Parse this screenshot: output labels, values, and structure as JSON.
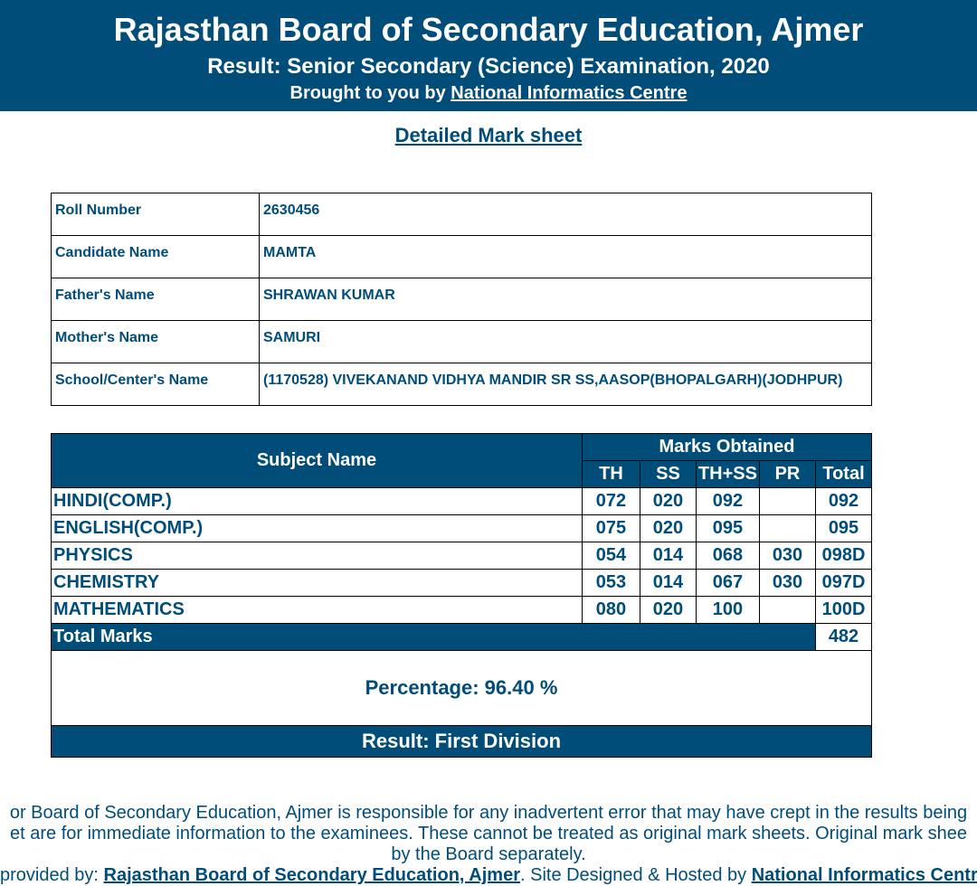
{
  "header": {
    "title": "Rajasthan Board of Secondary Education, Ajmer",
    "subtitle": "Result: Senior Secondary (Science) Examination, 2020",
    "brought_prefix": "Brought to you by ",
    "brought_link": "National Informatics Centre",
    "band_bg": "#004d7a",
    "band_fg": "#ffffff"
  },
  "detailed_heading": "Detailed Mark sheet ",
  "info": {
    "rows": [
      {
        "label": "Roll Number",
        "value": "2630456"
      },
      {
        "label": "Candidate Name",
        "value": "MAMTA"
      },
      {
        "label": "Father's Name",
        "value": "SHRAWAN KUMAR"
      },
      {
        "label": "Mother's Name",
        "value": "SAMURI"
      },
      {
        "label": "School/Center's Name",
        "value": "(1170528) VIVEKANAND VIDHYA MANDIR SR SS,AASOP(BHOPALGARH)(JODHPUR)"
      }
    ]
  },
  "marks": {
    "subject_hdr": "Subject Name",
    "marks_hdr": "Marks Obtained",
    "cols": {
      "th": "TH",
      "ss": "SS",
      "thss": "TH+SS",
      "pr": "PR",
      "total": "Total"
    },
    "rows": [
      {
        "subject": "HINDI(COMP.)",
        "th": "072",
        "ss": "020",
        "thss": "092",
        "pr": "",
        "total": "092"
      },
      {
        "subject": "ENGLISH(COMP.)",
        "th": "075",
        "ss": "020",
        "thss": "095",
        "pr": "",
        "total": "095"
      },
      {
        "subject": "PHYSICS",
        "th": "054",
        "ss": "014",
        "thss": "068",
        "pr": "030",
        "total": "098D"
      },
      {
        "subject": "CHEMISTRY",
        "th": "053",
        "ss": "014",
        "thss": "067",
        "pr": "030",
        "total": "097D"
      },
      {
        "subject": "MATHEMATICS",
        "th": "080",
        "ss": "020",
        "thss": "100",
        "pr": "",
        "total": "100D"
      }
    ],
    "total_label": "Total Marks",
    "total_value": "482",
    "percentage": "Percentage: 96.40 %",
    "result": "Result: First Division"
  },
  "disclaimer": {
    "l1": "or Board of Secondary Education, Ajmer is responsible for any inadvertent error that may have crept in the results being",
    "l2": "et are for immediate information to the examinees. These cannot be treated as original mark sheets. Original mark shee",
    "l3": "by the Board separately."
  },
  "footer": {
    "prefix": " provided by: ",
    "link1": "Rajasthan Board of Secondary Education, Ajmer",
    "mid": ". Site Designed & Hosted by ",
    "link2": "National Informatics Centre"
  },
  "colors": {
    "brand": "#004d7a",
    "text_on_brand": "#ffffff",
    "border": "#000000"
  }
}
